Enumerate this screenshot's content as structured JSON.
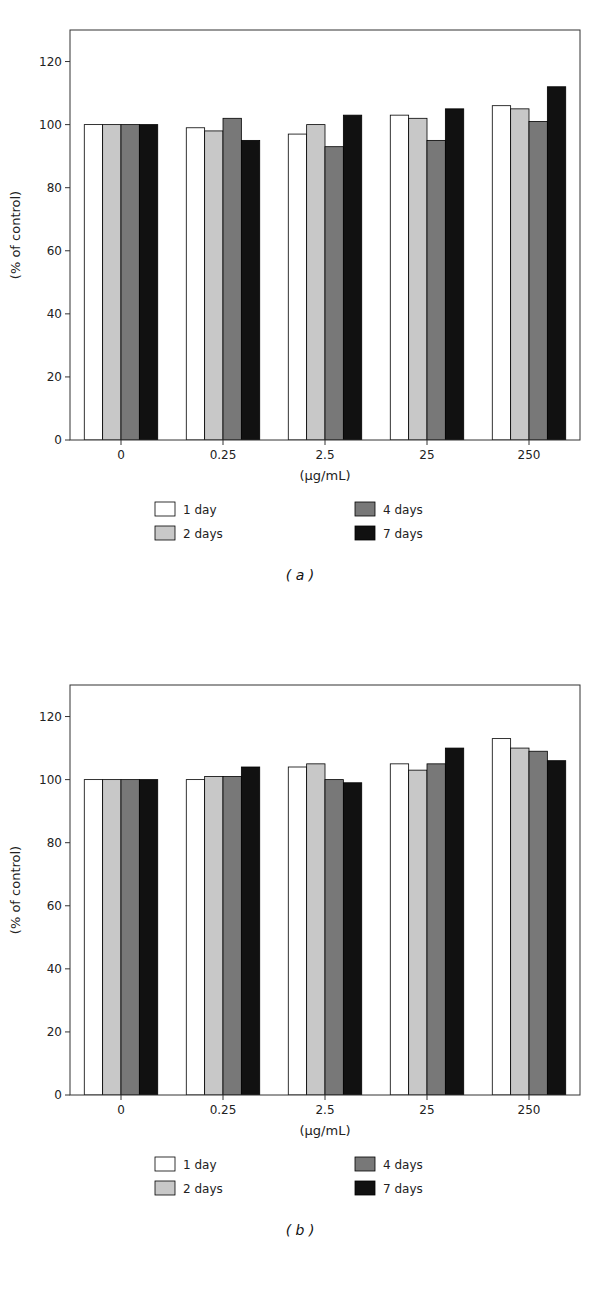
{
  "chart_data": [
    {
      "type": "bar",
      "title": "( a )",
      "categories": [
        "0",
        "0.25",
        "2.5",
        "25",
        "250"
      ],
      "series": [
        {
          "name": "1 day",
          "color": "#ffffff",
          "values": [
            100,
            99,
            97,
            103,
            106
          ]
        },
        {
          "name": "2 days",
          "color": "#c8c8c8",
          "values": [
            100,
            98,
            100,
            102,
            105
          ]
        },
        {
          "name": "4 days",
          "color": "#787878",
          "values": [
            100,
            102,
            93,
            95,
            101
          ]
        },
        {
          "name": "7 days",
          "color": "#111111",
          "values": [
            100,
            95,
            103,
            105,
            112
          ]
        }
      ],
      "xlabel": "(μg/mL)",
      "ylabel": "(% of control)",
      "ylim": [
        0,
        130
      ],
      "yticks": [
        0,
        20,
        40,
        60,
        80,
        100,
        120
      ],
      "grid": false,
      "legend": "bottom"
    },
    {
      "type": "bar",
      "title": "( b )",
      "categories": [
        "0",
        "0.25",
        "2.5",
        "25",
        "250"
      ],
      "series": [
        {
          "name": "1 day",
          "color": "#ffffff",
          "values": [
            100,
            100,
            104,
            105,
            113
          ]
        },
        {
          "name": "2 days",
          "color": "#c8c8c8",
          "values": [
            100,
            101,
            105,
            103,
            110
          ]
        },
        {
          "name": "4 days",
          "color": "#787878",
          "values": [
            100,
            101,
            100,
            105,
            109
          ]
        },
        {
          "name": "7 days",
          "color": "#111111",
          "values": [
            100,
            104,
            99,
            110,
            106
          ]
        }
      ],
      "xlabel": "(μg/mL)",
      "ylabel": "(% of control)",
      "ylim": [
        0,
        130
      ],
      "yticks": [
        0,
        20,
        40,
        60,
        80,
        100,
        120
      ],
      "grid": false,
      "legend": "bottom"
    }
  ]
}
